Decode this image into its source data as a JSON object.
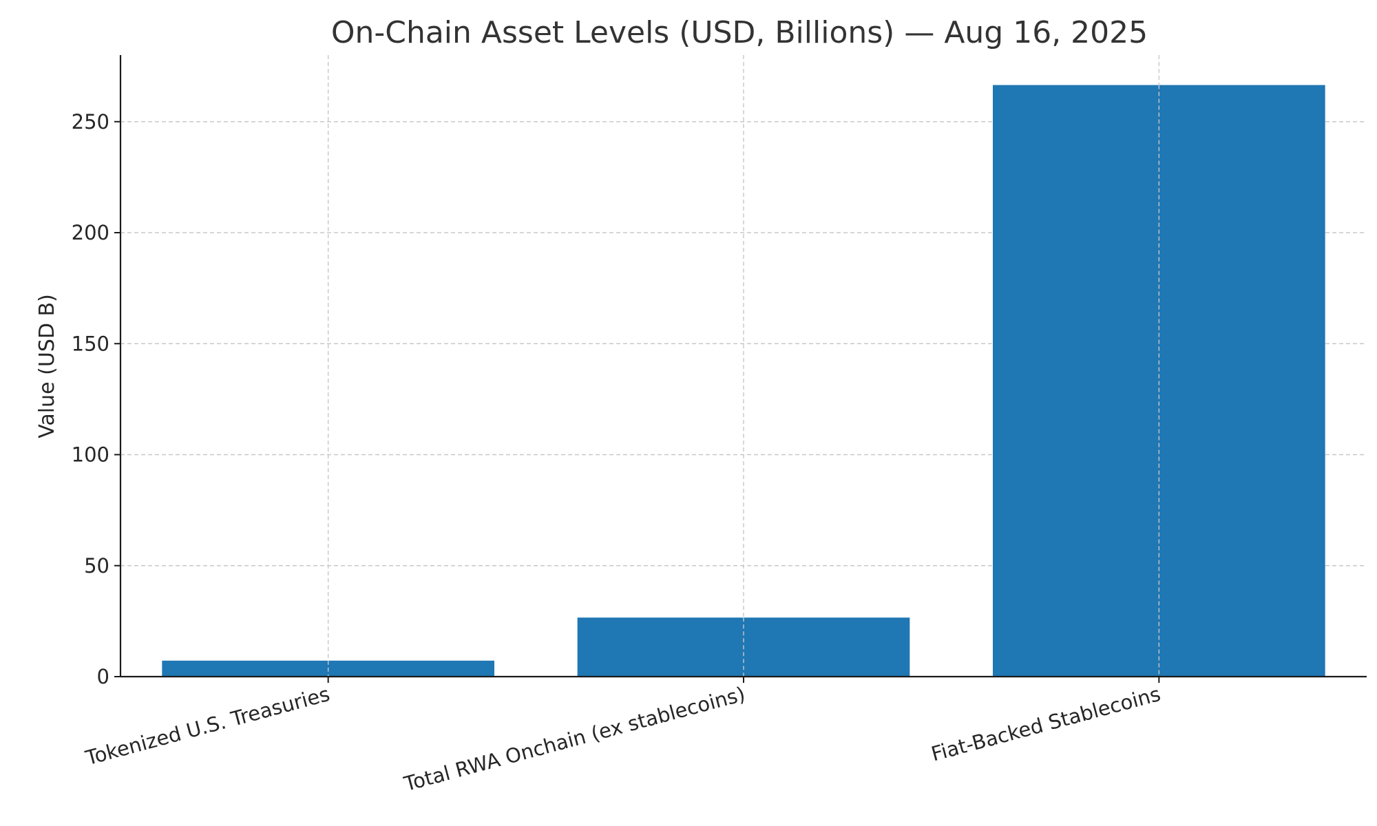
{
  "chart_data": {
    "type": "bar",
    "title": "On-Chain Asset Levels (USD, Billions) — Aug 16, 2025",
    "xlabel": "",
    "ylabel": "Value (USD B)",
    "categories": [
      "Tokenized U.S. Treasuries",
      "Total RWA Onchain (ex stablecoins)",
      "Fiat-Backed Stablecoins"
    ],
    "values": [
      7.2,
      26.6,
      266.5
    ],
    "ylim": [
      0,
      280
    ],
    "yticks": [
      0,
      50,
      100,
      150,
      200,
      250
    ],
    "ytick_labels": [
      "0",
      "50",
      "100",
      "150",
      "200",
      "250"
    ],
    "grid": true,
    "bar_color": "#1f77b4"
  }
}
